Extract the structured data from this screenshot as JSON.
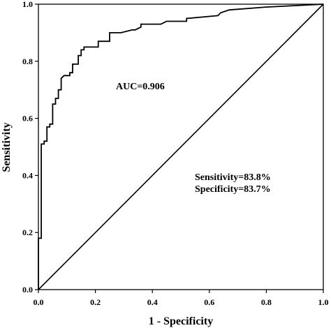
{
  "chart_data": {
    "type": "line",
    "title": "",
    "xlabel": "1 - Specificity",
    "ylabel": "Sensitivity",
    "xlim": [
      0,
      1
    ],
    "ylim": [
      0,
      1
    ],
    "x_ticks": [
      "0.0",
      "0.2",
      "0.4",
      "0.6",
      "0.8",
      "1.0"
    ],
    "y_ticks": [
      "0.0",
      "0.2",
      "0.4",
      "0.6",
      "0.8",
      "1.0"
    ],
    "grid": false,
    "legend": "none",
    "series": [
      {
        "kind": "roc-curve",
        "x": [
          0.0,
          0.0,
          0.01,
          0.01,
          0.01,
          0.02,
          0.02,
          0.03,
          0.03,
          0.04,
          0.04,
          0.05,
          0.05,
          0.06,
          0.06,
          0.07,
          0.07,
          0.08,
          0.08,
          0.09,
          0.11,
          0.11,
          0.12,
          0.12,
          0.14,
          0.14,
          0.15,
          0.15,
          0.16,
          0.16,
          0.19,
          0.21,
          0.21,
          0.23,
          0.25,
          0.25,
          0.29,
          0.33,
          0.34,
          0.36,
          0.36,
          0.43,
          0.45,
          0.52,
          0.52,
          0.63,
          0.64,
          0.67,
          0.8,
          1.0
        ],
        "y": [
          0.0,
          0.18,
          0.18,
          0.5,
          0.51,
          0.51,
          0.52,
          0.52,
          0.57,
          0.57,
          0.58,
          0.58,
          0.65,
          0.65,
          0.67,
          0.67,
          0.7,
          0.7,
          0.74,
          0.75,
          0.75,
          0.76,
          0.76,
          0.79,
          0.79,
          0.82,
          0.82,
          0.84,
          0.84,
          0.85,
          0.85,
          0.85,
          0.87,
          0.87,
          0.87,
          0.9,
          0.9,
          0.91,
          0.91,
          0.92,
          0.93,
          0.93,
          0.94,
          0.94,
          0.95,
          0.96,
          0.97,
          0.98,
          0.99,
          1.0
        ],
        "color": "#000000"
      },
      {
        "kind": "reference-diagonal",
        "x": [
          0,
          1
        ],
        "y": [
          0,
          1
        ],
        "color": "#000000"
      }
    ],
    "annotations": {
      "auc": "AUC=0.906",
      "sensitivity": "Sensitivity=83.8%",
      "specificity": "Specificity=83.7%"
    }
  }
}
